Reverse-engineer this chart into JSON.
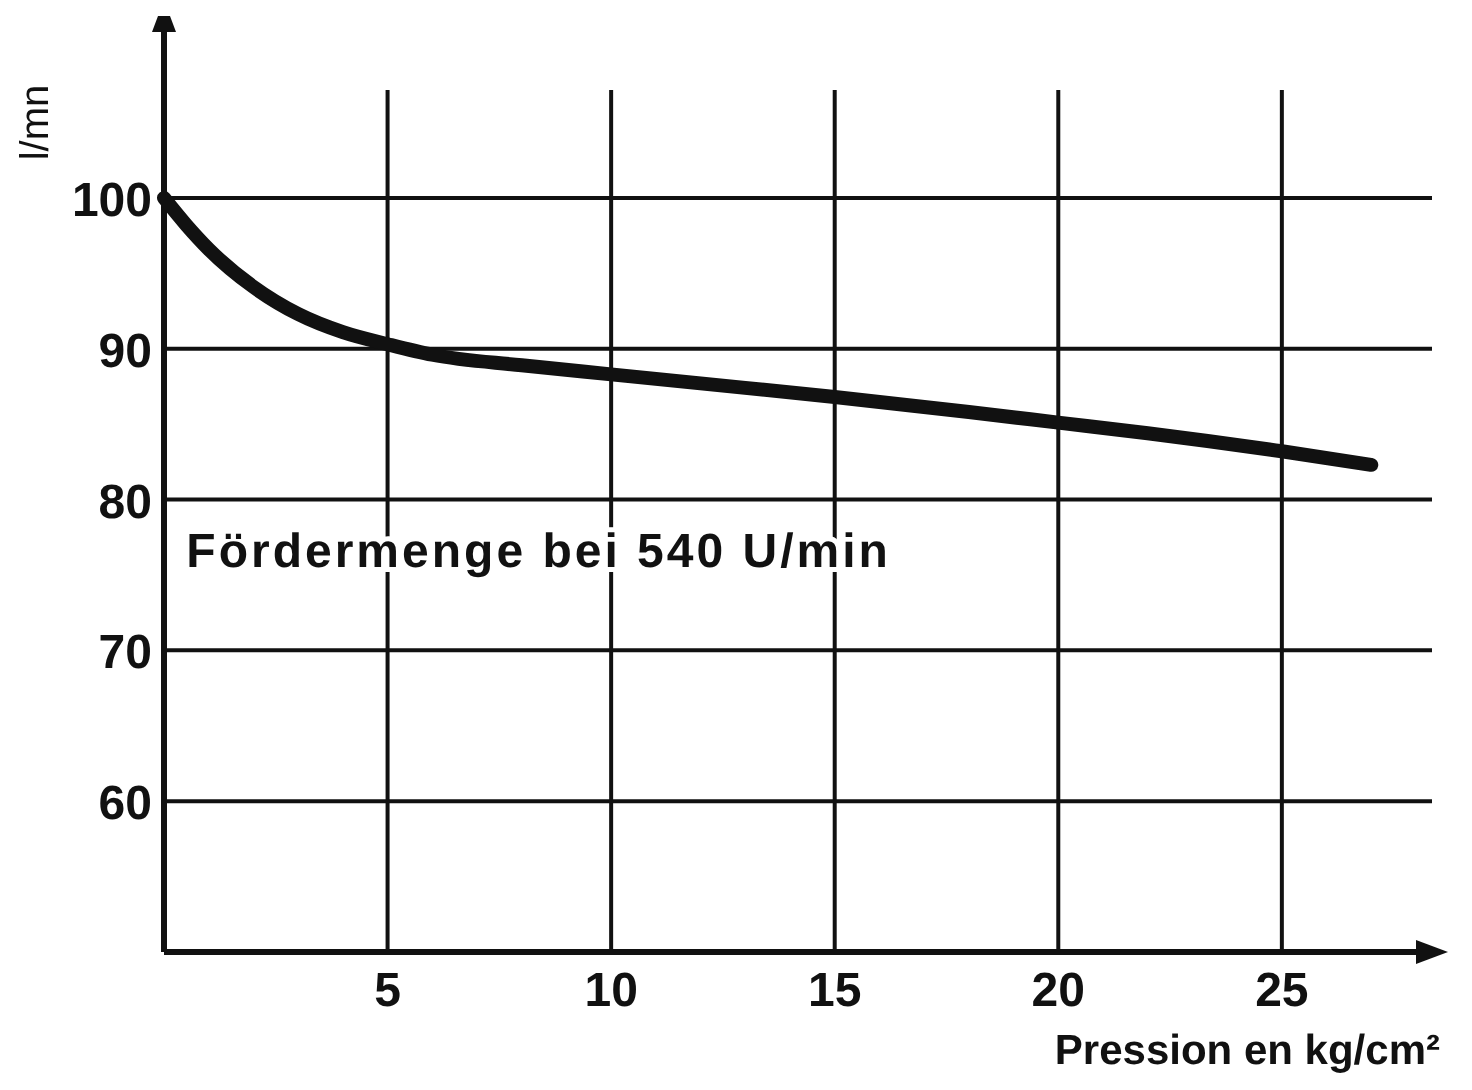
{
  "chart_data": {
    "type": "line",
    "xlabel": "Pression en kg/cm²",
    "ylabel": "l/mn",
    "annotations": [
      "Fördermenge bei 540 U/min"
    ],
    "x": [
      0,
      0.5,
      1,
      2,
      3,
      4,
      5,
      6,
      8,
      10,
      12,
      15,
      18,
      20,
      22,
      25,
      27
    ],
    "series": [
      {
        "color": "#111111",
        "values": [
          100,
          98.2,
          96.6,
          94.1,
          92.3,
          91.1,
          90.3,
          89.6,
          88.9,
          88.3,
          87.7,
          86.8,
          85.8,
          85.1,
          84.4,
          83.2,
          82.3
        ]
      }
    ],
    "xlim": [
      0,
      28
    ],
    "ylim": [
      50,
      111
    ],
    "xticks": [
      5,
      10,
      15,
      20,
      25
    ],
    "yticks": [
      60,
      70,
      80,
      90,
      100
    ],
    "grid": true,
    "marker": "none",
    "line_style": "solid"
  }
}
